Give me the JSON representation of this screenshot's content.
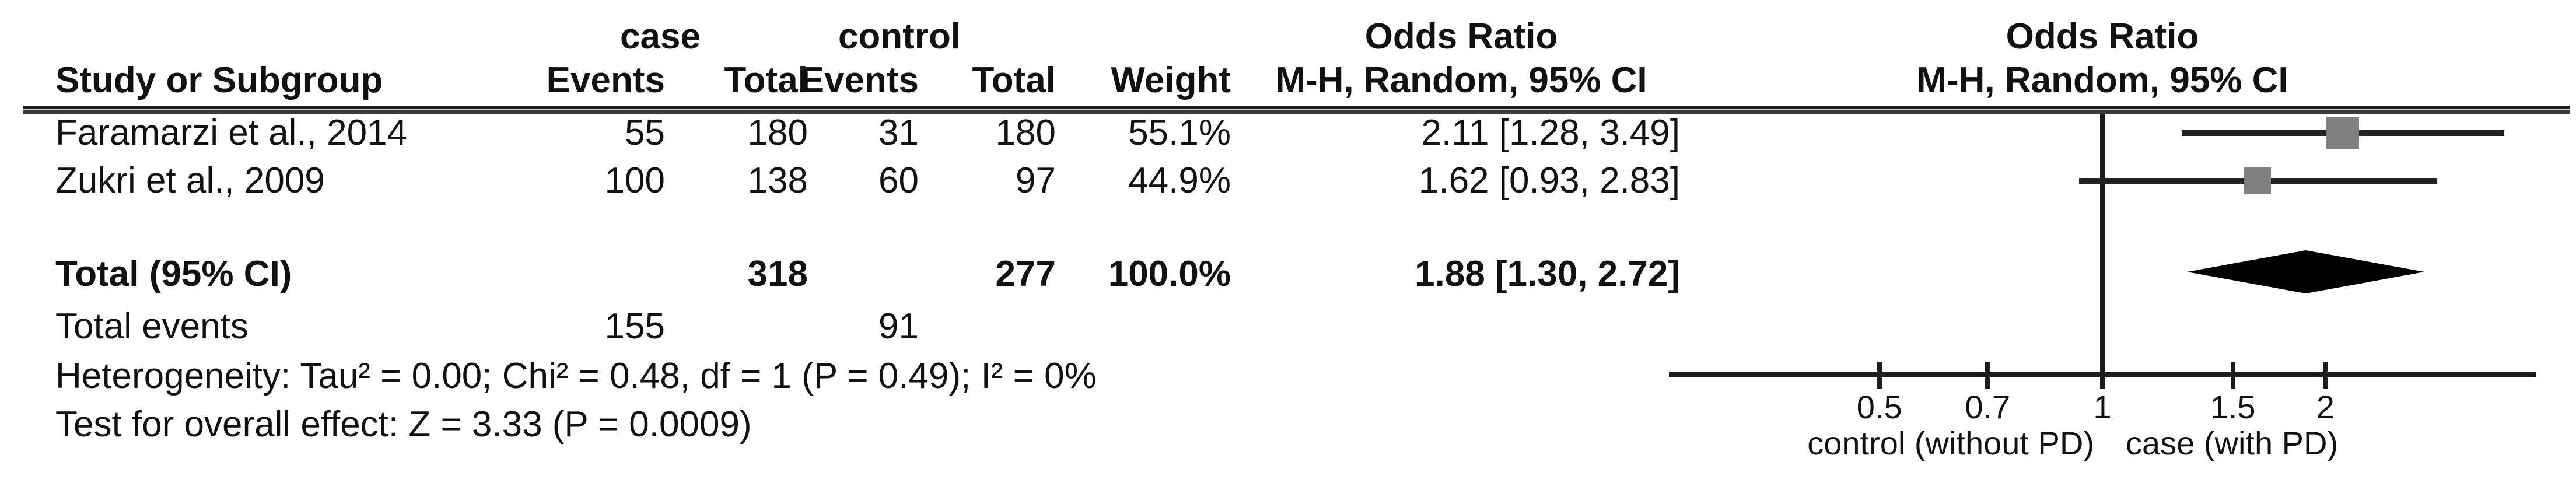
{
  "header": {
    "group1": "case",
    "group2": "control",
    "or_column_title": "Odds Ratio",
    "plot_title": "Odds Ratio",
    "study": "Study or Subgroup",
    "events": "Events",
    "total": "Total",
    "events2": "Events",
    "total2": "Total",
    "weight": "Weight",
    "method": "M-H, Random, 95% CI",
    "plot_method": "M-H, Random, 95% CI"
  },
  "rows": [
    {
      "study": "Faramarzi et al., 2014",
      "case_events": "55",
      "case_total": "180",
      "control_events": "31",
      "control_total": "180",
      "weight": "55.1%",
      "or_ci": "2.11 [1.28, 3.49]"
    },
    {
      "study": "Zukri et al., 2009",
      "case_events": "100",
      "case_total": "138",
      "control_events": "60",
      "control_total": "97",
      "weight": "44.9%",
      "or_ci": "1.62 [0.93, 2.83]"
    }
  ],
  "total_row": {
    "label": "Total (95% CI)",
    "case_total": "318",
    "control_total": "277",
    "weight": "100.0%",
    "or_ci": "1.88 [1.30, 2.72]"
  },
  "total_events": {
    "label": "Total events",
    "case_events": "155",
    "control_events": "91"
  },
  "footnotes": {
    "heterogeneity": "Heterogeneity: Tau² = 0.00; Chi² = 0.48, df = 1 (P = 0.49); I² = 0%",
    "overall_effect": "Test for overall effect: Z = 3.33 (P = 0.0009)"
  },
  "chart_data": {
    "type": "forest",
    "scale": "log10",
    "title": "Odds Ratio",
    "method_label": "M-H, Random, 95% CI",
    "axis": {
      "ticks": [
        0.5,
        0.7,
        1,
        1.5,
        2
      ],
      "tick_labels": [
        "0.5",
        "0.7",
        "1",
        "1.5",
        "2"
      ],
      "min": 0.26,
      "max": 3.85,
      "null_line": 1,
      "left_label": "control (without PD)",
      "right_label": "case (with PD)"
    },
    "studies": [
      {
        "name": "Faramarzi et al., 2014",
        "or": 2.11,
        "ci_low": 1.28,
        "ci_high": 3.49,
        "weight_pct": 55.1
      },
      {
        "name": "Zukri et al., 2009",
        "or": 1.62,
        "ci_low": 0.93,
        "ci_high": 2.83,
        "weight_pct": 44.9
      }
    ],
    "total": {
      "name": "Total (95% CI)",
      "or": 1.88,
      "ci_low": 1.3,
      "ci_high": 2.72,
      "weight_pct": 100.0
    },
    "colors": {
      "square": "#808080",
      "ci_line": "#222222",
      "diamond": "#000000",
      "axis": "#1c1c1c"
    }
  }
}
